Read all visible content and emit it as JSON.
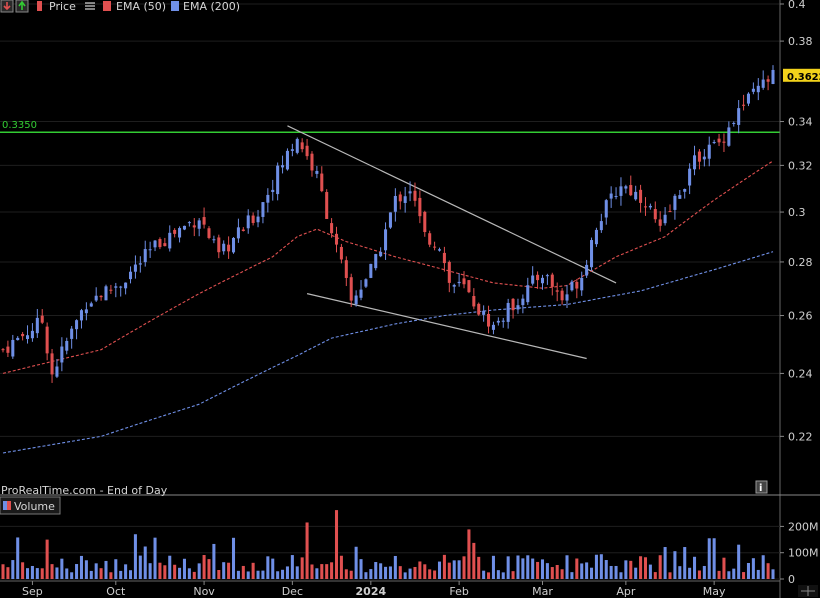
{
  "toolbar": {
    "price_label": "Price",
    "ema50_label": "EMA (50)",
    "ema200_label": "EMA (200)"
  },
  "source_text": "ProRealTime.com - End of Day",
  "volume_label": "Volume",
  "colors": {
    "up": "#6f8fe6",
    "down": "#e05050",
    "ema50": "#e05050",
    "ema200": "#6f8fe6",
    "hline": "#33cc33",
    "trendline": "#b8b8b8",
    "background": "#000000"
  },
  "icons": [
    "down-arrow-icon",
    "up-arrow-icon",
    "list-icon",
    "info-icon"
  ],
  "chart_data": {
    "type": "candlestick",
    "y_scale": "log",
    "ylim": [
      0.21,
      0.4
    ],
    "y_ticks": [
      "0.4",
      "0.38",
      "0.34",
      "0.32",
      "0.3",
      "0.28",
      "0.26",
      "0.24",
      "0.22"
    ],
    "x_labels": [
      {
        "text": "Sep",
        "bold": false
      },
      {
        "text": "Oct",
        "bold": false
      },
      {
        "text": "Nov",
        "bold": false
      },
      {
        "text": "Dec",
        "bold": false
      },
      {
        "text": "2024",
        "bold": true
      },
      {
        "text": "Feb",
        "bold": false
      },
      {
        "text": "Mar",
        "bold": false
      },
      {
        "text": "Apr",
        "bold": false
      },
      {
        "text": "May",
        "bold": false
      }
    ],
    "horizontal_line": {
      "value": 0.335,
      "label": "0.3350"
    },
    "last_price": {
      "value": 0.3622,
      "label": "0.3622"
    },
    "price_waypoints": [
      [
        0,
        0.248
      ],
      [
        8,
        0.258
      ],
      [
        10,
        0.24
      ],
      [
        17,
        0.265
      ],
      [
        24,
        0.272
      ],
      [
        32,
        0.288
      ],
      [
        40,
        0.298
      ],
      [
        44,
        0.282
      ],
      [
        52,
        0.3
      ],
      [
        56,
        0.317
      ],
      [
        60,
        0.333
      ],
      [
        64,
        0.315
      ],
      [
        68,
        0.285
      ],
      [
        71,
        0.265
      ],
      [
        76,
        0.28
      ],
      [
        80,
        0.305
      ],
      [
        83,
        0.31
      ],
      [
        86,
        0.29
      ],
      [
        89,
        0.287
      ],
      [
        91,
        0.272
      ],
      [
        94,
        0.27
      ],
      [
        97,
        0.262
      ],
      [
        100,
        0.256
      ],
      [
        103,
        0.262
      ],
      [
        107,
        0.27
      ],
      [
        110,
        0.276
      ],
      [
        114,
        0.266
      ],
      [
        118,
        0.275
      ],
      [
        121,
        0.295
      ],
      [
        126,
        0.312
      ],
      [
        131,
        0.305
      ],
      [
        134,
        0.292
      ],
      [
        137,
        0.305
      ],
      [
        142,
        0.325
      ],
      [
        146,
        0.33
      ],
      [
        150,
        0.345
      ],
      [
        155,
        0.358
      ],
      [
        157,
        0.362
      ]
    ],
    "ema50_waypoints": [
      [
        0,
        0.24
      ],
      [
        20,
        0.248
      ],
      [
        40,
        0.268
      ],
      [
        55,
        0.282
      ],
      [
        60,
        0.29
      ],
      [
        64,
        0.293
      ],
      [
        70,
        0.288
      ],
      [
        80,
        0.282
      ],
      [
        90,
        0.277
      ],
      [
        100,
        0.272
      ],
      [
        110,
        0.27
      ],
      [
        115,
        0.271
      ],
      [
        125,
        0.282
      ],
      [
        135,
        0.29
      ],
      [
        145,
        0.305
      ],
      [
        157,
        0.322
      ]
    ],
    "ema200_waypoints": [
      [
        0,
        0.215
      ],
      [
        20,
        0.22
      ],
      [
        40,
        0.23
      ],
      [
        60,
        0.246
      ],
      [
        67,
        0.252
      ],
      [
        80,
        0.257
      ],
      [
        90,
        0.26
      ],
      [
        100,
        0.262
      ],
      [
        115,
        0.264
      ],
      [
        130,
        0.269
      ],
      [
        145,
        0.277
      ],
      [
        157,
        0.284
      ]
    ],
    "trendlines": [
      {
        "from": [
          58,
          0.338
        ],
        "to": [
          125,
          0.272
        ]
      },
      {
        "from": [
          62,
          0.268
        ],
        "to": [
          119,
          0.245
        ]
      }
    ],
    "volume": {
      "y_ticks": [
        "200M",
        "100M",
        "0"
      ],
      "ylim": [
        0,
        270
      ]
    },
    "series": [
      {
        "name": "Price"
      },
      {
        "name": "EMA (50)"
      },
      {
        "name": "EMA (200)"
      },
      {
        "name": "Volume"
      }
    ]
  }
}
